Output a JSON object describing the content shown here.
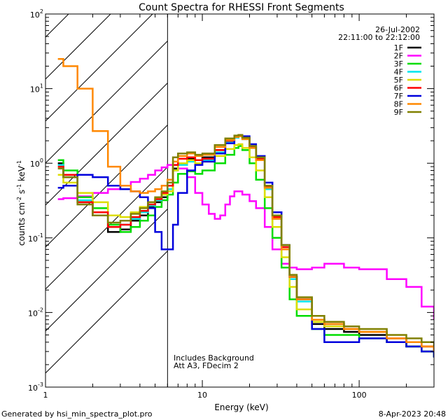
{
  "chart_data": {
    "type": "line",
    "title": "Count Spectra for RHESSI Front Segments",
    "xlabel": "Energy (keV)",
    "ylabel": "counts cm",
    "ylabel_sup1": "-2",
    "ylabel_mid": " s",
    "ylabel_sup2": "-1",
    "ylabel_mid2": " keV",
    "ylabel_sup3": "-1",
    "x_scale": "log",
    "y_scale": "log",
    "xlim": [
      1,
      300
    ],
    "ylim": [
      0.001,
      100
    ],
    "x_ticks": [
      {
        "value": 1,
        "label": "1"
      },
      {
        "value": 10,
        "label": "10"
      },
      {
        "value": 100,
        "label": "100"
      }
    ],
    "y_ticks": [
      {
        "value": 0.001,
        "base": "10",
        "exp": "-3"
      },
      {
        "value": 0.01,
        "base": "10",
        "exp": "-2"
      },
      {
        "value": 0.1,
        "base": "10",
        "exp": "-1"
      },
      {
        "value": 1,
        "base": "10",
        "exp": "0"
      },
      {
        "value": 10,
        "base": "10",
        "exp": "1"
      },
      {
        "value": 100,
        "base": "10",
        "exp": "2"
      }
    ],
    "date": "26-Jul-2002",
    "time_range": "22:11:00 to 22:12:00",
    "hatched_region": {
      "xmin": 1,
      "xmax": 6
    },
    "annotation_line1": "Includes Background",
    "annotation_line2": "Att A3, FDecim  2",
    "series": [
      {
        "name": "1F",
        "color": "#000000",
        "x": [
          1.2,
          1.3,
          1.6,
          2.0,
          2.5,
          3.0,
          3.5,
          4.0,
          4.5,
          5.0,
          5.5,
          6.0,
          6.5,
          7.0,
          8.0,
          9.0,
          10.0,
          12.0,
          14.0,
          16.0,
          17.0,
          18.0,
          20.0,
          22.0,
          25.0,
          28.0,
          32.0,
          36.0,
          40.0,
          50.0,
          60.0,
          80.0,
          100.0,
          150.0,
          200.0,
          250.0,
          300.0
        ],
        "y": [
          1.0,
          0.65,
          0.3,
          0.2,
          0.12,
          0.13,
          0.17,
          0.2,
          0.26,
          0.3,
          0.35,
          0.45,
          0.85,
          1.0,
          1.15,
          1.1,
          1.2,
          1.5,
          2.0,
          2.3,
          2.4,
          2.2,
          1.7,
          1.2,
          0.5,
          0.2,
          0.08,
          0.03,
          0.015,
          0.007,
          0.006,
          0.0055,
          0.005,
          0.004,
          0.0035,
          0.003,
          0.0025
        ]
      },
      {
        "name": "2F",
        "color": "#ff00ff",
        "x": [
          1.2,
          1.3,
          1.6,
          2.0,
          2.5,
          3.0,
          3.5,
          4.0,
          4.5,
          5.0,
          5.5,
          6.0,
          7.0,
          8.0,
          9.0,
          10.0,
          11.0,
          12.0,
          13.0,
          14.0,
          15.0,
          16.0,
          17.0,
          18.0,
          20.0,
          22.0,
          25.0,
          28.0,
          32.0,
          36.0,
          40.0,
          50.0,
          60.0,
          80.0,
          100.0,
          150.0,
          200.0,
          250.0,
          300.0
        ],
        "y": [
          0.33,
          0.34,
          0.36,
          0.4,
          0.45,
          0.5,
          0.56,
          0.62,
          0.7,
          0.8,
          0.88,
          0.95,
          0.85,
          0.65,
          0.4,
          0.28,
          0.21,
          0.18,
          0.2,
          0.28,
          0.36,
          0.42,
          0.42,
          0.38,
          0.31,
          0.25,
          0.14,
          0.07,
          0.045,
          0.04,
          0.038,
          0.04,
          0.045,
          0.04,
          0.038,
          0.028,
          0.022,
          0.012,
          0.008
        ]
      },
      {
        "name": "3F",
        "color": "#00dd00",
        "x": [
          1.2,
          1.3,
          1.6,
          2.0,
          2.5,
          3.0,
          3.5,
          4.0,
          4.5,
          5.0,
          5.5,
          6.0,
          6.5,
          7.0,
          8.0,
          9.0,
          10.0,
          12.0,
          14.0,
          16.0,
          17.0,
          18.0,
          20.0,
          22.0,
          25.0,
          28.0,
          32.0,
          36.0,
          40.0,
          50.0,
          60.0,
          80.0,
          100.0,
          150.0,
          200.0,
          250.0,
          300.0
        ],
        "y": [
          1.1,
          0.8,
          0.35,
          0.25,
          0.15,
          0.12,
          0.14,
          0.17,
          0.2,
          0.26,
          0.32,
          0.38,
          0.55,
          0.72,
          0.78,
          0.72,
          0.8,
          1.0,
          1.3,
          1.6,
          1.7,
          1.5,
          1.0,
          0.6,
          0.25,
          0.1,
          0.04,
          0.015,
          0.009,
          0.006,
          0.005,
          0.005,
          0.0045,
          0.004,
          0.0035,
          0.003,
          0.0025
        ]
      },
      {
        "name": "4F",
        "color": "#00e5ee",
        "x": [
          1.2,
          1.3,
          1.6,
          2.0,
          2.5,
          3.0,
          3.5,
          4.0,
          4.5,
          5.0,
          5.5,
          6.0,
          6.5,
          7.0,
          8.0,
          9.0,
          10.0,
          12.0,
          14.0,
          16.0,
          17.0,
          18.0,
          20.0,
          22.0,
          25.0,
          28.0,
          32.0,
          36.0,
          40.0,
          50.0,
          60.0,
          80.0,
          100.0,
          150.0,
          200.0,
          250.0,
          300.0
        ],
        "y": [
          0.95,
          0.7,
          0.32,
          0.22,
          0.14,
          0.15,
          0.18,
          0.22,
          0.27,
          0.32,
          0.38,
          0.45,
          0.8,
          0.95,
          1.05,
          1.0,
          1.1,
          1.4,
          1.9,
          2.2,
          2.3,
          2.1,
          1.6,
          1.1,
          0.45,
          0.18,
          0.07,
          0.028,
          0.014,
          0.008,
          0.007,
          0.006,
          0.0055,
          0.0045,
          0.004,
          0.0035,
          0.003
        ]
      },
      {
        "name": "5F",
        "color": "#dddd00",
        "x": [
          1.2,
          1.3,
          1.6,
          2.0,
          2.5,
          3.0,
          3.5,
          4.0,
          4.5,
          5.0,
          5.5,
          6.0,
          6.5,
          7.0,
          8.0,
          9.0,
          10.0,
          12.0,
          14.0,
          16.0,
          17.0,
          18.0,
          20.0,
          22.0,
          25.0,
          28.0,
          32.0,
          36.0,
          40.0,
          50.0,
          60.0,
          80.0,
          100.0,
          150.0,
          200.0,
          250.0,
          300.0
        ],
        "y": [
          0.7,
          0.55,
          0.4,
          0.3,
          0.2,
          0.19,
          0.22,
          0.26,
          0.3,
          0.34,
          0.38,
          0.42,
          0.8,
          1.0,
          1.1,
          1.0,
          1.05,
          1.25,
          1.55,
          1.75,
          1.8,
          1.6,
          1.2,
          0.8,
          0.35,
          0.14,
          0.055,
          0.022,
          0.011,
          0.0075,
          0.0065,
          0.006,
          0.0055,
          0.0045,
          0.004,
          0.0035,
          0.003
        ]
      },
      {
        "name": "6F",
        "color": "#ff0000",
        "x": [
          1.2,
          1.3,
          1.6,
          2.0,
          2.5,
          3.0,
          3.5,
          4.0,
          4.5,
          5.0,
          5.5,
          6.0,
          6.5,
          7.0,
          8.0,
          9.0,
          10.0,
          12.0,
          14.0,
          16.0,
          17.0,
          18.0,
          20.0,
          22.0,
          25.0,
          28.0,
          32.0,
          36.0,
          40.0,
          50.0,
          60.0,
          80.0,
          100.0,
          150.0,
          200.0,
          250.0,
          300.0
        ],
        "y": [
          0.9,
          0.7,
          0.3,
          0.22,
          0.14,
          0.15,
          0.19,
          0.23,
          0.28,
          0.33,
          0.4,
          0.5,
          0.95,
          1.15,
          1.2,
          1.1,
          1.15,
          1.5,
          2.0,
          2.3,
          2.35,
          2.15,
          1.65,
          1.15,
          0.48,
          0.19,
          0.075,
          0.03,
          0.015,
          0.008,
          0.007,
          0.006,
          0.0055,
          0.0045,
          0.004,
          0.0035,
          0.003
        ]
      },
      {
        "name": "7F",
        "color": "#0000dd",
        "x": [
          1.2,
          1.3,
          1.6,
          2.0,
          2.5,
          3.0,
          3.5,
          4.0,
          4.5,
          5.0,
          5.5,
          6.0,
          6.5,
          7.0,
          8.0,
          9.0,
          10.0,
          12.0,
          14.0,
          16.0,
          17.0,
          18.0,
          20.0,
          22.0,
          25.0,
          28.0,
          32.0,
          36.0,
          40.0,
          50.0,
          60.0,
          80.0,
          100.0,
          150.0,
          200.0,
          250.0,
          300.0
        ],
        "y": [
          0.47,
          0.5,
          0.7,
          0.65,
          0.5,
          0.45,
          0.42,
          0.35,
          0.25,
          0.12,
          0.07,
          0.07,
          0.15,
          0.4,
          0.8,
          0.95,
          1.05,
          1.35,
          1.85,
          2.25,
          2.4,
          2.3,
          1.8,
          1.25,
          0.55,
          0.22,
          0.08,
          0.03,
          0.015,
          0.006,
          0.004,
          0.004,
          0.0045,
          0.004,
          0.0035,
          0.003,
          0.0025
        ]
      },
      {
        "name": "8F",
        "color": "#ff8800",
        "x": [
          1.2,
          1.3,
          1.6,
          2.0,
          2.5,
          3.0,
          3.5,
          4.0,
          4.5,
          5.0,
          5.5,
          6.0,
          6.5,
          7.0,
          8.0,
          9.0,
          10.0,
          12.0,
          14.0,
          16.0,
          17.0,
          18.0,
          20.0,
          22.0,
          25.0,
          28.0,
          32.0,
          36.0,
          40.0,
          50.0,
          60.0,
          80.0,
          100.0,
          150.0,
          200.0,
          250.0,
          300.0
        ],
        "y": [
          25,
          20,
          10,
          2.7,
          0.9,
          0.5,
          0.42,
          0.4,
          0.42,
          0.45,
          0.5,
          0.6,
          1.05,
          1.25,
          1.35,
          1.25,
          1.3,
          1.65,
          2.05,
          2.25,
          2.3,
          2.1,
          1.6,
          1.1,
          0.47,
          0.18,
          0.07,
          0.03,
          0.015,
          0.008,
          0.007,
          0.006,
          0.0055,
          0.0045,
          0.004,
          0.0035,
          0.003
        ]
      },
      {
        "name": "9F",
        "color": "#808000",
        "x": [
          1.2,
          1.3,
          1.6,
          2.0,
          2.5,
          3.0,
          3.5,
          4.0,
          4.5,
          5.0,
          5.5,
          6.0,
          6.5,
          7.0,
          8.0,
          9.0,
          10.0,
          12.0,
          14.0,
          16.0,
          17.0,
          18.0,
          20.0,
          22.0,
          25.0,
          28.0,
          32.0,
          36.0,
          40.0,
          50.0,
          60.0,
          80.0,
          100.0,
          150.0,
          200.0,
          250.0,
          300.0
        ],
        "y": [
          0.85,
          0.65,
          0.28,
          0.2,
          0.16,
          0.17,
          0.21,
          0.25,
          0.3,
          0.35,
          0.42,
          0.55,
          1.2,
          1.35,
          1.4,
          1.3,
          1.35,
          1.75,
          2.15,
          2.35,
          2.4,
          2.2,
          1.7,
          1.2,
          0.5,
          0.2,
          0.08,
          0.032,
          0.016,
          0.009,
          0.0075,
          0.0065,
          0.006,
          0.005,
          0.0045,
          0.004,
          0.0035
        ]
      }
    ]
  },
  "footer": {
    "generated_by": "Generated by hsi_min_spectra_plot.pro",
    "timestamp": "8-Apr-2023 20:48"
  }
}
